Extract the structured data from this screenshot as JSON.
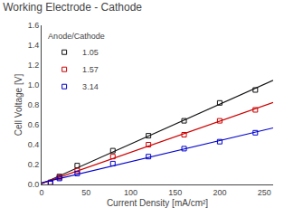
{
  "chart_data": {
    "type": "scatter",
    "title": "Working Electrode - Cathode",
    "xlabel": "Current Density [mA/cm²]",
    "ylabel": "Cell Voltage [V]",
    "xlim": [
      0,
      260
    ],
    "ylim": [
      0,
      1.6
    ],
    "xticks": [
      0,
      50,
      100,
      150,
      200,
      250
    ],
    "yticks": [
      0.0,
      0.2,
      0.4,
      0.6,
      0.8,
      1.0,
      1.2,
      1.4,
      1.6
    ],
    "grid": false,
    "legend": "upper left",
    "legend_title": "Anode/Cathode",
    "marker": "square-open",
    "series": [
      {
        "name": "1.05",
        "color": "#111111",
        "x": [
          10,
          20,
          40,
          80,
          120,
          160,
          200,
          240
        ],
        "values": [
          0.02,
          0.08,
          0.19,
          0.34,
          0.49,
          0.64,
          0.82,
          0.95
        ],
        "fit": {
          "x": [
            0,
            260
          ],
          "values": [
            0.006329,
            1.04614
          ]
        }
      },
      {
        "name": "1.57",
        "color": "#cc0000",
        "x": [
          10,
          20,
          40,
          80,
          120,
          160,
          200,
          240
        ],
        "values": [
          0.02,
          0.07,
          0.14,
          0.28,
          0.4,
          0.5,
          0.64,
          0.75
        ],
        "fit": {
          "x": [
            0,
            260
          ],
          "values": [
            0.009731,
            0.823248
          ]
        }
      },
      {
        "name": "3.14",
        "color": "#0000cc",
        "x": [
          10,
          20,
          40,
          80,
          120,
          160,
          200,
          240
        ],
        "values": [
          0.01,
          0.06,
          0.11,
          0.21,
          0.28,
          0.36,
          0.43,
          0.52
        ],
        "fit": {
          "x": [
            0,
            260
          ],
          "values": [
            0.016905,
            0.568213
          ]
        }
      }
    ]
  }
}
